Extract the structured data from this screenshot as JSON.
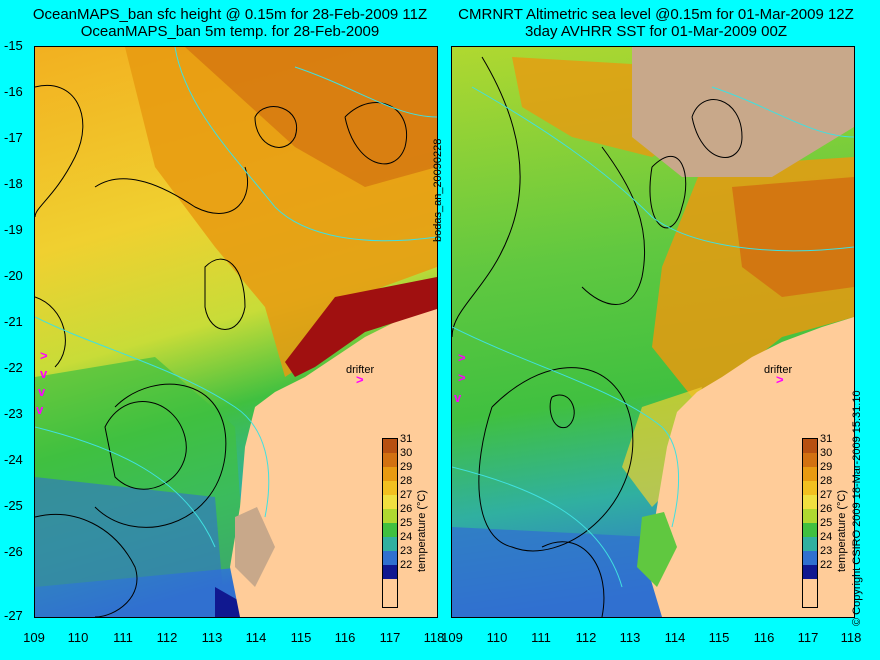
{
  "left_title": {
    "line1": "OceanMAPS_ban sfc height @ 0.15m for 28-Feb-2009 11Z",
    "line2": "OceanMAPS_ban 5m temp. for 28-Feb-2009"
  },
  "right_title": {
    "line1": "CMRNRT Altimetric sea level  @0.15m  for 01-Mar-2009 12Z",
    "line2": "3day AVHRR SST for 01-Mar-2009 00Z"
  },
  "axes": {
    "y_ticks": [
      "-15",
      "-16",
      "-17",
      "-18",
      "-19",
      "-20",
      "-21",
      "-22",
      "-23",
      "-24",
      "-25",
      "-26",
      "-27"
    ],
    "x_ticks": [
      "109",
      "110",
      "111",
      "112",
      "113",
      "114",
      "115",
      "116",
      "117",
      "118"
    ]
  },
  "colorbar": {
    "labels": [
      "31",
      "30",
      "29",
      "28",
      "27",
      "26",
      "25",
      "24",
      "23",
      "22"
    ],
    "colors": [
      "#b85010",
      "#d27010",
      "#e89a10",
      "#f2c020",
      "#f0e040",
      "#b0d830",
      "#40c040",
      "#30b0a0",
      "#3070d0",
      "#101890"
    ],
    "title": "temperature (°C)"
  },
  "labels": {
    "drifter": "drifter",
    "side_left": "bodas_an_20090228",
    "side_right": "© Copyright CSIRO 2009   18-Mar-2009 15:31:10"
  },
  "colors": {
    "background": "#00ffff",
    "land": "#ffcc99",
    "shallow_land": "#c8a88a",
    "contour": "#000000",
    "isobath": "#40e0e0",
    "drifter": "#ff00ff"
  }
}
